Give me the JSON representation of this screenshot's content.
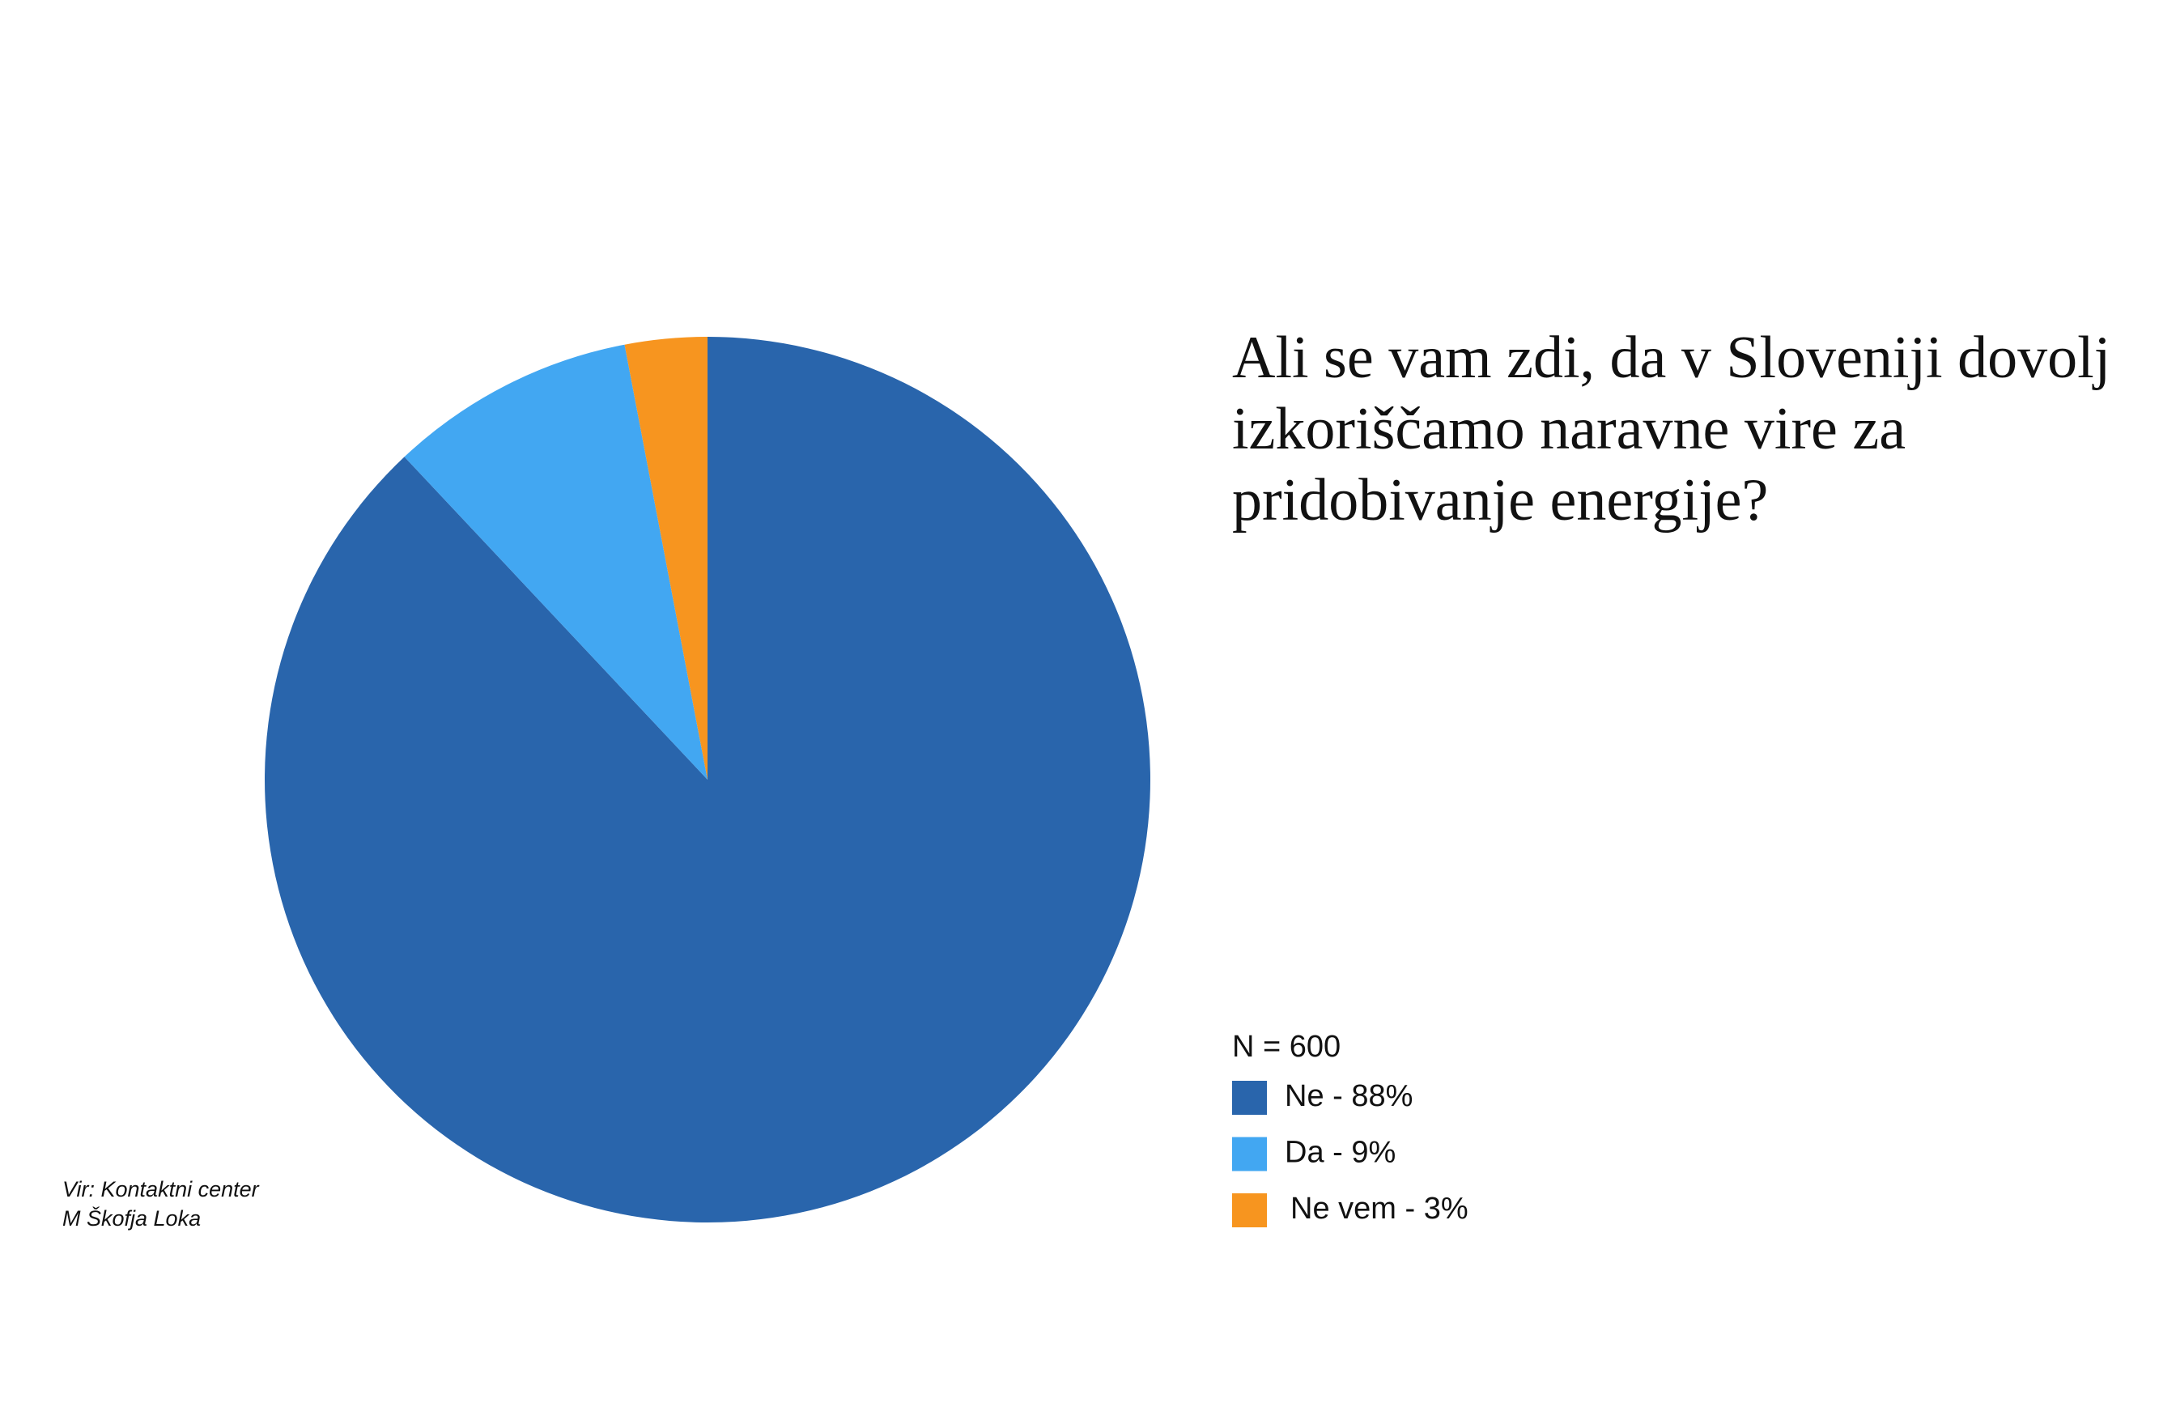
{
  "chart_data": {
    "type": "pie",
    "title": "Ali se vam zdi, da v Sloveniji dovolj izkoriščamo naravne vire za pridobivanje energije?",
    "note": "N = 600",
    "source": [
      "Vir: Kontaktni center",
      "M Škofja Loka"
    ],
    "categories": [
      "Ne - 88%",
      "Da - 9%",
      "Ne vem - 3%"
    ],
    "values": [
      88,
      9,
      3
    ],
    "colors": [
      "#2965ac",
      "#42a7f2",
      "#f7951f"
    ]
  }
}
